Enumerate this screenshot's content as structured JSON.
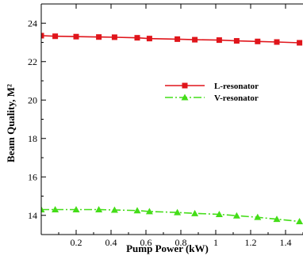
{
  "chart_data": {
    "type": "line",
    "title": "",
    "xlabel": "Pump Power (kW)",
    "ylabel": "Beam Quality, M²",
    "xlim": [
      0,
      1.5
    ],
    "ylim": [
      13,
      25
    ],
    "xticks": [
      0.2,
      0.4,
      0.6,
      0.8,
      1.0,
      1.2,
      1.4
    ],
    "xtick_labels": [
      "0.2",
      "0.4",
      "0.6",
      "0.8",
      "1",
      "1.2",
      "1.4"
    ],
    "yticks": [
      14,
      16,
      18,
      20,
      22,
      24
    ],
    "ytick_labels": [
      "14",
      "16",
      "18",
      "20",
      "22",
      "24"
    ],
    "grid": false,
    "legend_position": "upper-right",
    "series": [
      {
        "name": "L-resonator",
        "color": "#e0151b",
        "line_style": "solid",
        "marker": "square",
        "x": [
          0.0,
          0.08,
          0.2,
          0.33,
          0.42,
          0.55,
          0.62,
          0.78,
          0.88,
          1.02,
          1.12,
          1.24,
          1.35,
          1.48
        ],
        "y": [
          23.35,
          23.32,
          23.3,
          23.28,
          23.27,
          23.24,
          23.2,
          23.17,
          23.14,
          23.12,
          23.08,
          23.05,
          23.02,
          22.98
        ]
      },
      {
        "name": "V-resonator",
        "color": "#44dd18",
        "line_style": "dashdot",
        "marker": "triangle",
        "x": [
          0.0,
          0.08,
          0.2,
          0.33,
          0.42,
          0.55,
          0.62,
          0.78,
          0.88,
          1.02,
          1.12,
          1.24,
          1.35,
          1.48
        ],
        "y": [
          14.3,
          14.3,
          14.3,
          14.3,
          14.28,
          14.25,
          14.2,
          14.15,
          14.1,
          14.05,
          13.98,
          13.9,
          13.8,
          13.68
        ]
      }
    ]
  }
}
